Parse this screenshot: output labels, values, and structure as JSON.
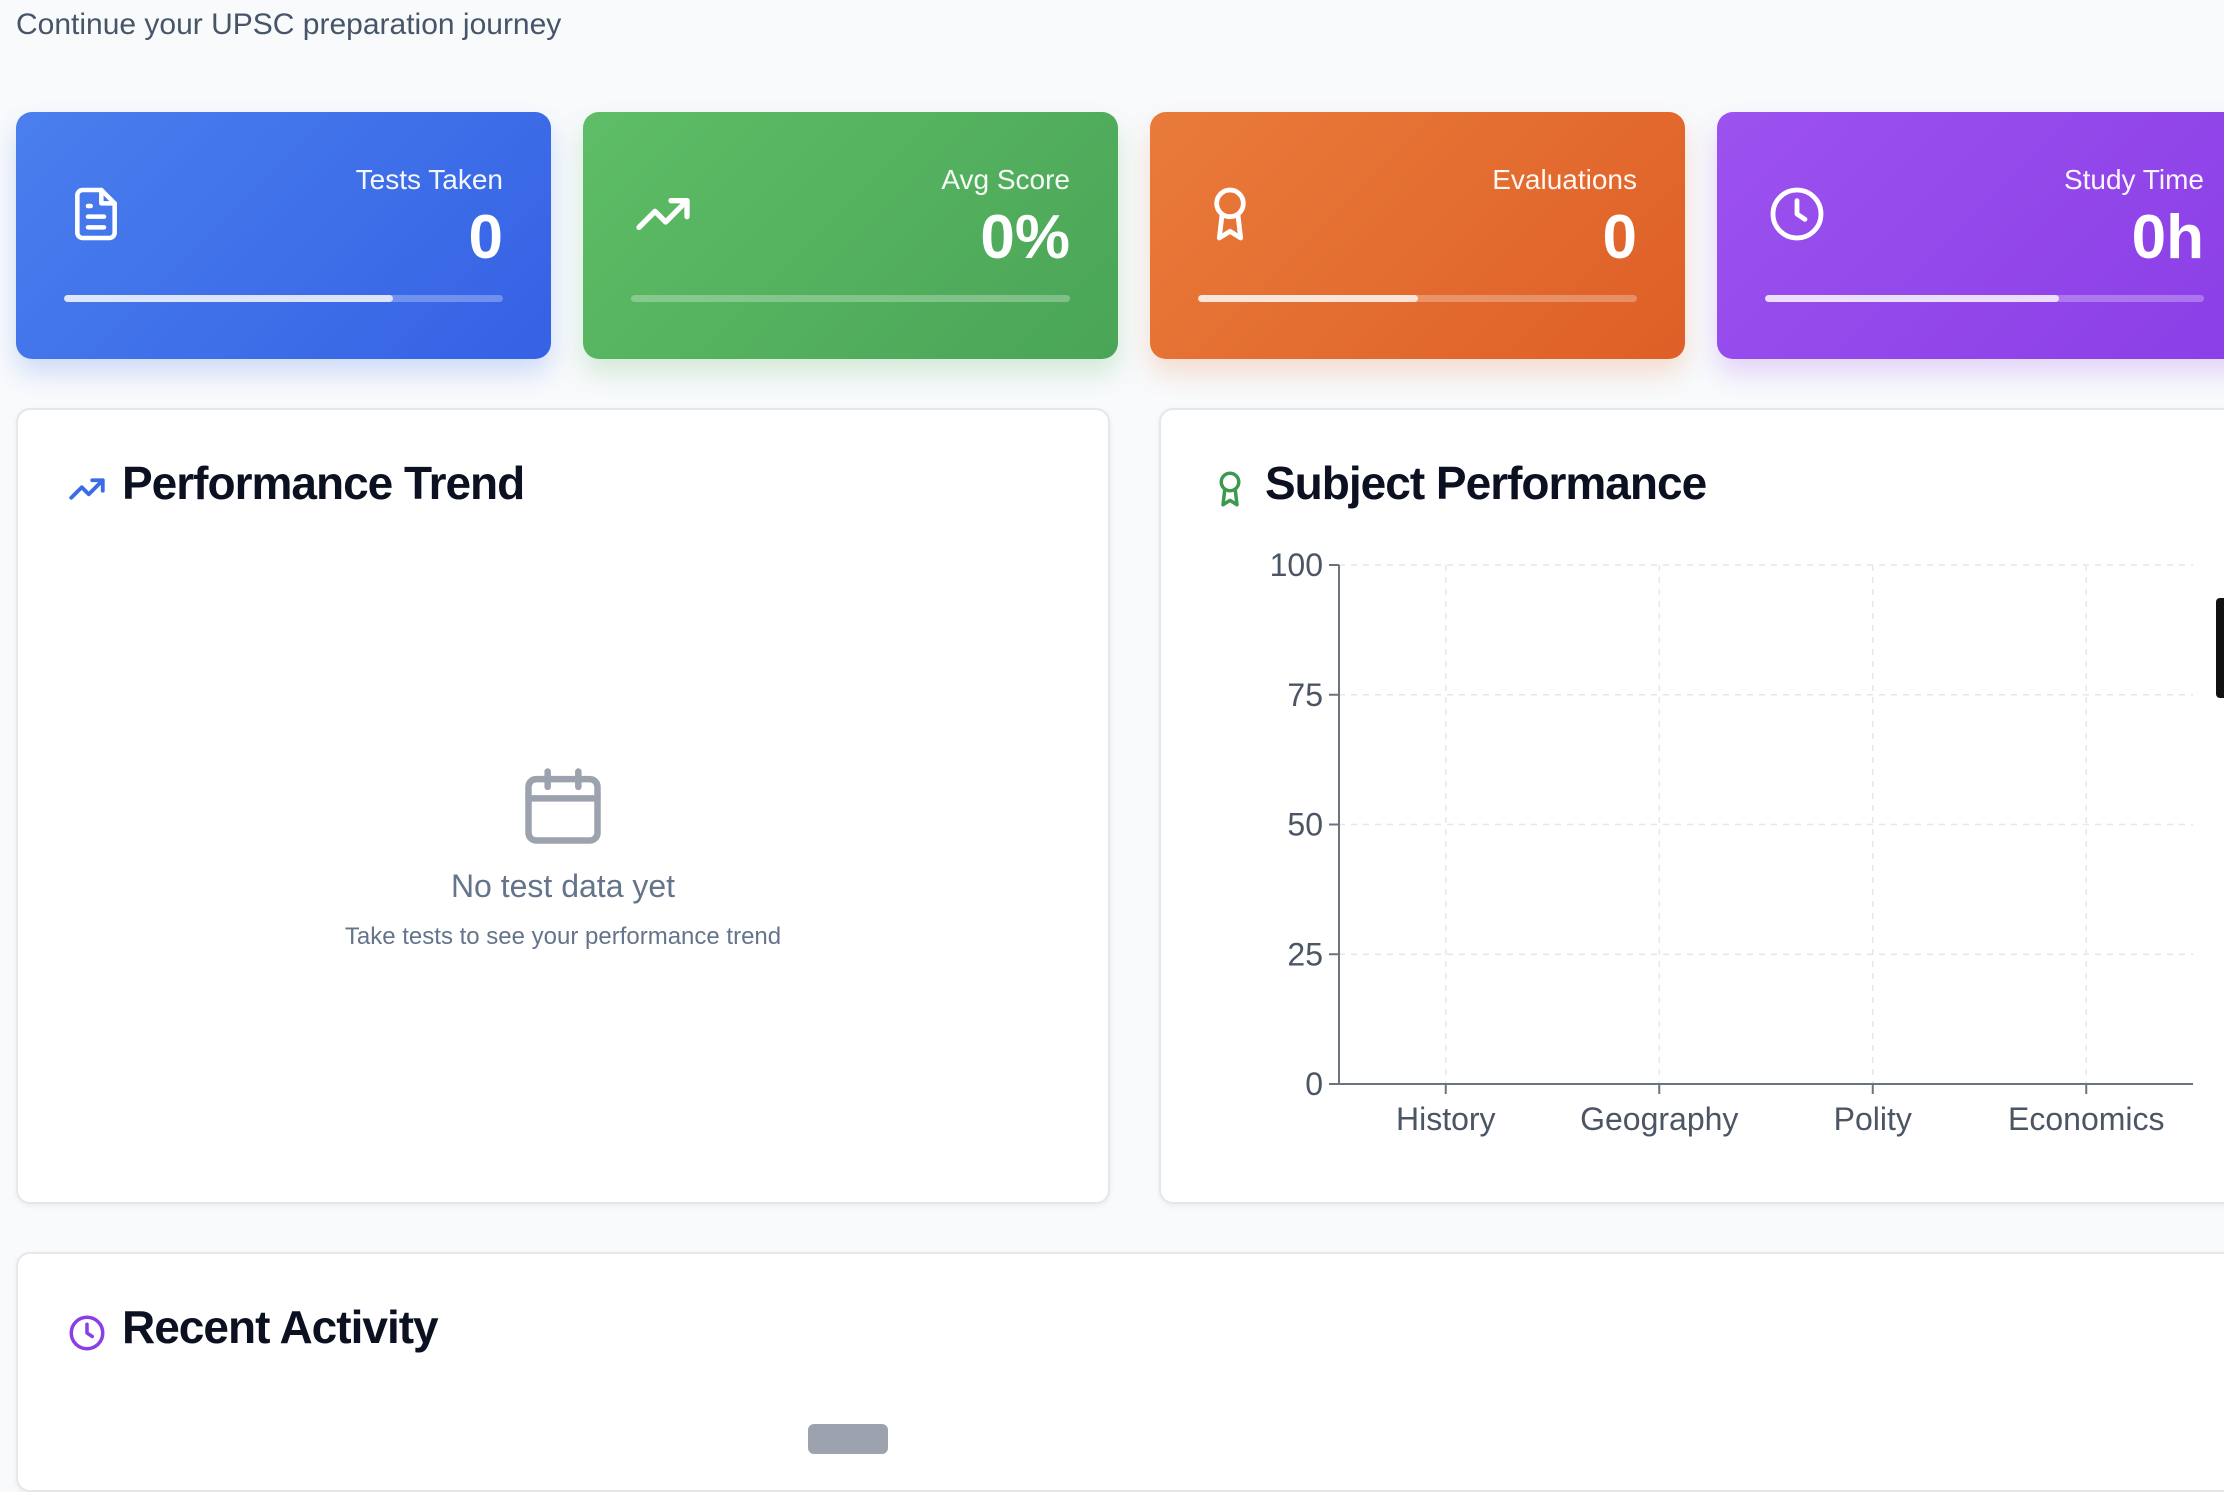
{
  "header": {
    "subtitle": "Continue your UPSC preparation journey"
  },
  "stats": [
    {
      "label": "Tests Taken",
      "value": "0",
      "icon": "document-icon",
      "color": "#3b6ce8",
      "progress": 0.75
    },
    {
      "label": "Avg Score",
      "value": "0%",
      "icon": "trending-up-icon",
      "color": "#52b15d",
      "progress": 0.0
    },
    {
      "label": "Evaluations",
      "value": "0",
      "icon": "award-icon",
      "color": "#e46d2f",
      "progress": 0.5
    },
    {
      "label": "Study Time",
      "value": "0h",
      "icon": "clock-icon",
      "color": "#9448eb",
      "progress": 0.67
    }
  ],
  "performance_trend": {
    "title": "Performance Trend",
    "icon": "trending-up-icon",
    "empty_icon": "calendar-icon",
    "empty_title": "No test data yet",
    "empty_subtitle": "Take tests to see your performance trend"
  },
  "subject_performance": {
    "title": "Subject Performance",
    "icon": "award-icon"
  },
  "recent_activity": {
    "title": "Recent Activity",
    "icon": "clock-icon"
  },
  "chart_data": {
    "type": "bar",
    "categories": [
      "History",
      "Geography",
      "Polity",
      "Economics"
    ],
    "values": [
      0,
      0,
      0,
      0
    ],
    "ylim": [
      0,
      100
    ],
    "yticks": [
      "0",
      "25",
      "50",
      "75",
      "100"
    ],
    "grid": true
  }
}
